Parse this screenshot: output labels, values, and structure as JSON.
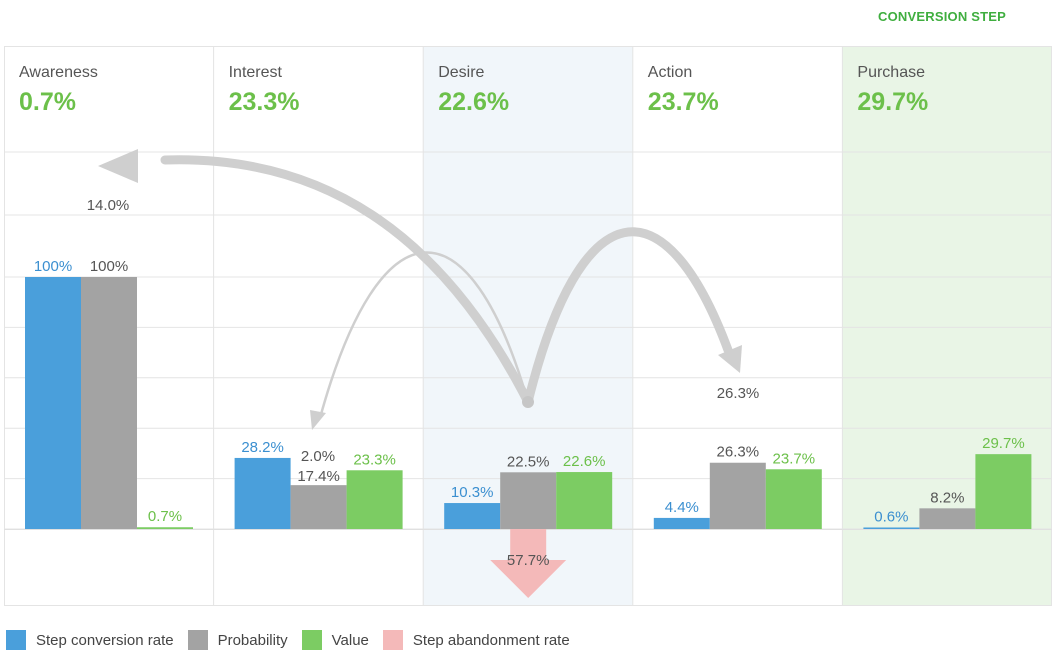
{
  "header": {
    "corner_label": "CONVERSION STEP"
  },
  "colors": {
    "conversion": "#4a9fdb",
    "probability": "#a3a3a3",
    "value": "#7ccc63",
    "abandonment": "#f4b9b9",
    "value_text": "#6cc04a",
    "conversion_text": "#3b8fd0",
    "highlight_desire": "#f1f6fa",
    "highlight_purchase": "#e9f5e6",
    "flow": "#cfcfcf"
  },
  "legend": [
    {
      "key": "conversion",
      "label": "Step conversion rate"
    },
    {
      "key": "probability",
      "label": "Probability"
    },
    {
      "key": "value",
      "label": "Value"
    },
    {
      "key": "abandonment",
      "label": "Step abandonment rate"
    }
  ],
  "chart_data": {
    "type": "bar",
    "categories": [
      "Awareness",
      "Interest",
      "Desire",
      "Action",
      "Purchase"
    ],
    "step_values": [
      "0.7%",
      "23.3%",
      "22.6%",
      "23.7%",
      "29.7%"
    ],
    "ylim": [
      0,
      100
    ],
    "grid": true,
    "legend_position": "bottom-left",
    "series": [
      {
        "key": "conversion",
        "name": "Step conversion rate",
        "values": [
          100,
          28.2,
          10.3,
          4.4,
          0.6
        ],
        "labels": [
          "100%",
          "28.2%",
          "10.3%",
          "4.4%",
          "0.6%"
        ]
      },
      {
        "key": "probability",
        "name": "Probability",
        "values": [
          100,
          17.4,
          22.5,
          26.3,
          8.2
        ],
        "labels": [
          "100%",
          "17.4%",
          "22.5%",
          "26.3%",
          "8.2%"
        ]
      },
      {
        "key": "value",
        "name": "Value",
        "values": [
          0.7,
          23.3,
          22.6,
          23.7,
          29.7
        ],
        "labels": [
          "0.7%",
          "23.3%",
          "22.6%",
          "23.7%",
          "29.7%"
        ]
      }
    ],
    "abandonment": {
      "category": "Desire",
      "name": "Step abandonment rate",
      "value": 57.7,
      "label": "57.7%"
    },
    "flows": [
      {
        "from": "Desire",
        "to": "Awareness",
        "label": "14.0%",
        "weight": "heavy"
      },
      {
        "from": "Desire",
        "to": "Interest",
        "label": "2.0%",
        "weight": "light"
      },
      {
        "from": "Desire",
        "to": "Action",
        "label": "26.3%",
        "weight": "heavy"
      }
    ]
  }
}
